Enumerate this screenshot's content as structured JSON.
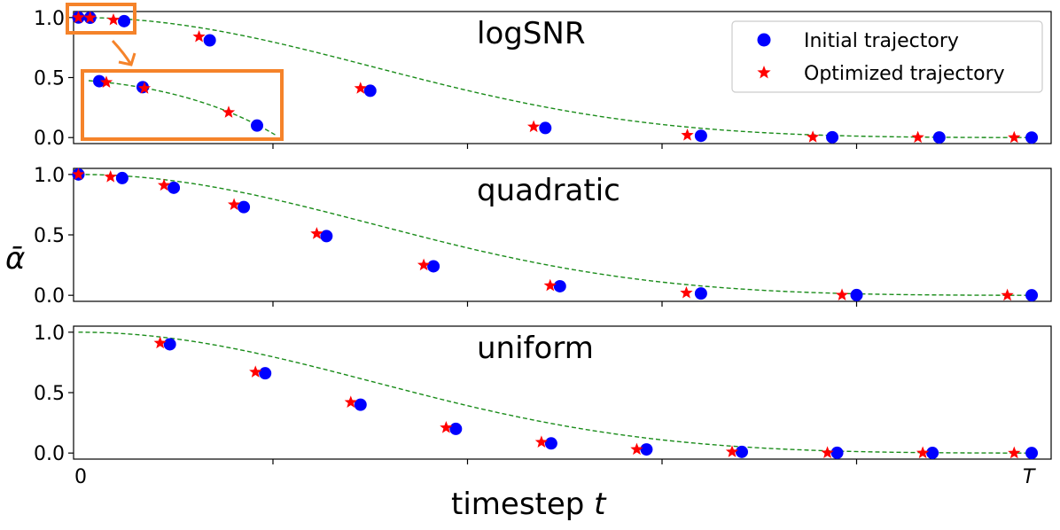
{
  "chart_data": [
    {
      "type": "scatter",
      "title": "logSNR",
      "ylim": [
        -0.05,
        1.05
      ],
      "yticks": [
        "0.0",
        "0.5",
        "1.0"
      ],
      "curve": {
        "style": "dashed",
        "color": "#1a8c1a"
      },
      "series": [
        {
          "name": "Initial trajectory",
          "marker": "circle",
          "color": "#0000ff",
          "x": [
            0.0,
            0.012,
            0.047,
            0.135,
            0.3,
            0.48,
            0.64,
            0.775,
            0.885,
            0.98
          ],
          "y": [
            1.0,
            0.998,
            0.97,
            0.81,
            0.39,
            0.08,
            0.015,
            0.003,
            0.001,
            0.0
          ]
        },
        {
          "name": "Optimized trajectory",
          "marker": "star",
          "color": "#ff0000",
          "x": [
            0.0,
            0.012,
            0.036,
            0.124,
            0.29,
            0.468,
            0.626,
            0.755,
            0.863,
            0.962
          ],
          "y": [
            1.0,
            0.998,
            0.98,
            0.84,
            0.41,
            0.09,
            0.02,
            0.004,
            0.001,
            0.0
          ]
        }
      ],
      "inset_zoom": {
        "initial": [
          0.47,
          0.42,
          0.1
        ],
        "optimized": [
          0.46,
          0.41,
          0.21
        ]
      }
    },
    {
      "type": "scatter",
      "title": "quadratic",
      "ylim": [
        -0.05,
        1.05
      ],
      "yticks": [
        "0.0",
        "0.5",
        "1.0"
      ],
      "series": [
        {
          "name": "Initial trajectory",
          "marker": "circle",
          "color": "#0000ff",
          "x": [
            0.0,
            0.045,
            0.098,
            0.17,
            0.255,
            0.365,
            0.495,
            0.64,
            0.8,
            0.98
          ],
          "y": [
            1.0,
            0.97,
            0.89,
            0.73,
            0.49,
            0.24,
            0.075,
            0.015,
            0.002,
            0.0
          ]
        },
        {
          "name": "Optimized trajectory",
          "marker": "star",
          "color": "#ff0000",
          "x": [
            0.0,
            0.033,
            0.088,
            0.16,
            0.245,
            0.355,
            0.485,
            0.625,
            0.785,
            0.955
          ],
          "y": [
            1.0,
            0.98,
            0.91,
            0.75,
            0.51,
            0.25,
            0.08,
            0.02,
            0.002,
            0.0
          ]
        }
      ]
    },
    {
      "type": "scatter",
      "title": "uniform",
      "ylim": [
        -0.05,
        1.05
      ],
      "yticks": [
        "0.0",
        "0.5",
        "1.0"
      ],
      "series": [
        {
          "name": "Initial trajectory",
          "marker": "circle",
          "color": "#0000ff",
          "x": [
            0.094,
            0.192,
            0.29,
            0.388,
            0.486,
            0.584,
            0.682,
            0.78,
            0.878,
            0.98
          ],
          "y": [
            0.9,
            0.66,
            0.4,
            0.2,
            0.08,
            0.03,
            0.01,
            0.002,
            0.001,
            0.0
          ]
        },
        {
          "name": "Optimized trajectory",
          "marker": "star",
          "color": "#ff0000",
          "x": [
            0.084,
            0.182,
            0.28,
            0.378,
            0.476,
            0.574,
            0.672,
            0.77,
            0.868,
            0.962
          ],
          "y": [
            0.91,
            0.67,
            0.42,
            0.21,
            0.09,
            0.03,
            0.01,
            0.002,
            0.001,
            0.0
          ]
        }
      ]
    }
  ],
  "shared": {
    "xlabel": "timestep t",
    "xlabel_text": "timestep ",
    "xlabel_var": "t",
    "ylabel": "ᾱ",
    "x_tick_left": "0",
    "x_tick_right": "T",
    "legend": {
      "placement": "top-right",
      "items": [
        "Initial trajectory",
        "Optimized trajectory"
      ]
    },
    "colors": {
      "initial": "#0000ff",
      "optimized": "#ff0000",
      "curve": "#1a8c1a",
      "highlight": "#f5832a"
    }
  }
}
